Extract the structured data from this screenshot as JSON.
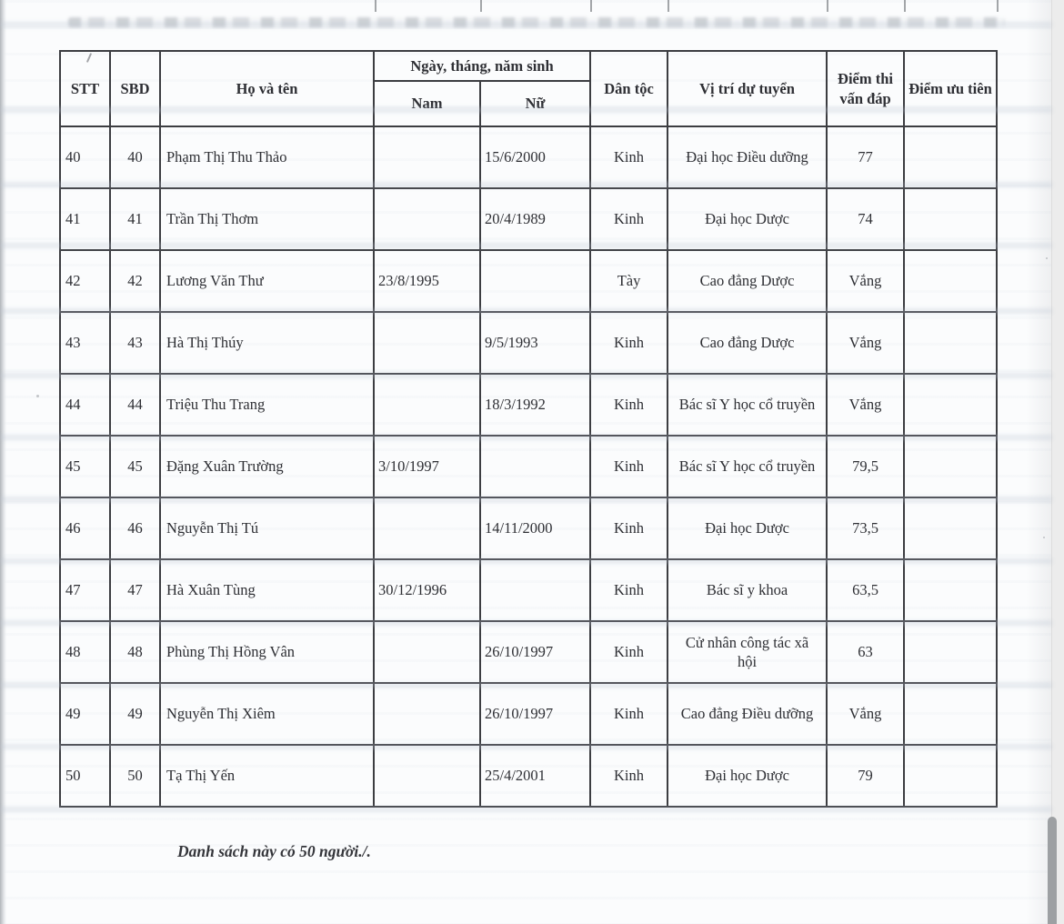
{
  "document": {
    "footer_note": "Danh sách này có 50 người./."
  },
  "table": {
    "headers": {
      "stt": "STT",
      "sbd": "SBD",
      "name": "Họ và tên",
      "dob_group": "Ngày, tháng, năm sinh",
      "male": "Nam",
      "female": "Nữ",
      "ethnicity": "Dân tộc",
      "position": "Vị trí dự tuyển",
      "interview_score": "Điểm thi vấn đáp",
      "priority_score": "Điểm ưu tiên"
    },
    "rows": [
      {
        "stt": "40",
        "sbd": "40",
        "name": "Phạm Thị Thu Thảo",
        "nam": "",
        "nu": "15/6/2000",
        "ethnicity": "Kinh",
        "position": "Đại học Điều dưỡng",
        "score": "77",
        "priority": ""
      },
      {
        "stt": "41",
        "sbd": "41",
        "name": "Trần Thị Thơm",
        "nam": "",
        "nu": "20/4/1989",
        "ethnicity": "Kinh",
        "position": "Đại học Dược",
        "score": "74",
        "priority": ""
      },
      {
        "stt": "42",
        "sbd": "42",
        "name": "Lương Văn Thư",
        "nam": "23/8/1995",
        "nu": "",
        "ethnicity": "Tày",
        "position": "Cao đẳng Dược",
        "score": "Vắng",
        "priority": ""
      },
      {
        "stt": "43",
        "sbd": "43",
        "name": "Hà Thị Thúy",
        "nam": "",
        "nu": "9/5/1993",
        "ethnicity": "Kinh",
        "position": "Cao đẳng Dược",
        "score": "Vắng",
        "priority": ""
      },
      {
        "stt": "44",
        "sbd": "44",
        "name": "Triệu Thu Trang",
        "nam": "",
        "nu": "18/3/1992",
        "ethnicity": "Kinh",
        "position": "Bác sĩ Y học cổ truyền",
        "score": "Vắng",
        "priority": ""
      },
      {
        "stt": "45",
        "sbd": "45",
        "name": "Đặng Xuân Trường",
        "nam": "3/10/1997",
        "nu": "",
        "ethnicity": "Kinh",
        "position": "Bác sĩ Y học cổ truyền",
        "score": "79,5",
        "priority": ""
      },
      {
        "stt": "46",
        "sbd": "46",
        "name": "Nguyễn Thị Tú",
        "nam": "",
        "nu": "14/11/2000",
        "ethnicity": "Kinh",
        "position": "Đại học Dược",
        "score": "73,5",
        "priority": ""
      },
      {
        "stt": "47",
        "sbd": "47",
        "name": "Hà Xuân Tùng",
        "nam": "30/12/1996",
        "nu": "",
        "ethnicity": "Kinh",
        "position": "Bác sĩ y khoa",
        "score": "63,5",
        "priority": ""
      },
      {
        "stt": "48",
        "sbd": "48",
        "name": "Phùng Thị Hồng Vân",
        "nam": "",
        "nu": "26/10/1997",
        "ethnicity": "Kinh",
        "position": "Cử nhân công tác xã hội",
        "score": "63",
        "priority": ""
      },
      {
        "stt": "49",
        "sbd": "49",
        "name": "Nguyễn Thị Xiêm",
        "nam": "",
        "nu": "26/10/1997",
        "ethnicity": "Kinh",
        "position": "Cao đẳng Điều dưỡng",
        "score": "Vắng",
        "priority": ""
      },
      {
        "stt": "50",
        "sbd": "50",
        "name": "Tạ Thị Yến",
        "nam": "",
        "nu": "25/4/2001",
        "ethnicity": "Kinh",
        "position": "Đại học Dược",
        "score": "79",
        "priority": ""
      }
    ]
  },
  "colors": {
    "table_border": "#3c3d41",
    "page_background": "#fbfcfd",
    "scrollbar_thumb": "#9da0a3"
  }
}
